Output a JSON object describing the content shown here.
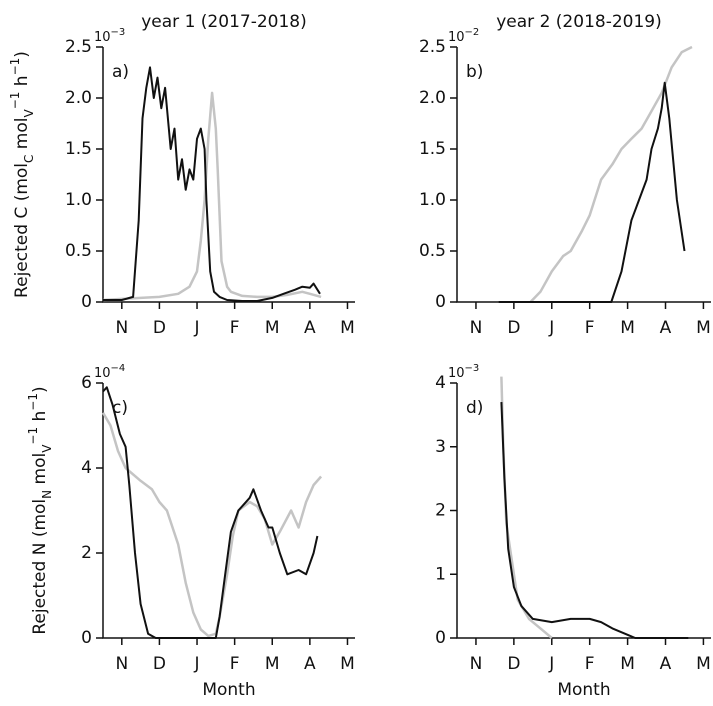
{
  "chart_data": [
    {
      "type": "line",
      "title": "year 1 (2017-2018)",
      "panel_label": "a)",
      "y_scale_label": {
        "base": "10",
        "exponent": "−3"
      },
      "ylabel_parts": [
        {
          "text": "Rejected C (mol",
          "shift": null
        },
        {
          "text": "C",
          "shift": "sub"
        },
        {
          "text": " mol",
          "shift": null
        },
        {
          "text": "V",
          "shift": "sub"
        },
        {
          "text": "−1",
          "shift": "super"
        },
        {
          "text": " h",
          "shift": null
        },
        {
          "text": "−1",
          "shift": "super"
        },
        {
          "text": ")",
          "shift": null
        }
      ],
      "xlim": [
        0.5,
        7.2
      ],
      "ylim": [
        0,
        2.5
      ],
      "xticks": [
        {
          "value": 1,
          "label": "N"
        },
        {
          "value": 2,
          "label": "D"
        },
        {
          "value": 3,
          "label": "J"
        },
        {
          "value": 4,
          "label": "F"
        },
        {
          "value": 5,
          "label": "M"
        },
        {
          "value": 6,
          "label": "A"
        },
        {
          "value": 7,
          "label": "M"
        }
      ],
      "yticks": [
        0,
        0.5,
        {
          "value": 1,
          "label": "1.0"
        },
        1.5,
        {
          "value": 2,
          "label": "2.0"
        },
        2.5
      ],
      "series": [
        {
          "color": "#c4c4c4",
          "x": [
            0.5,
            1.0,
            1.5,
            2.0,
            2.5,
            2.8,
            3.0,
            3.1,
            3.2,
            3.3,
            3.4,
            3.5,
            3.55,
            3.65,
            3.8,
            3.9,
            4.2,
            4.6,
            5.0,
            5.4,
            5.8,
            6.0,
            6.3
          ],
          "values": [
            0.02,
            0.03,
            0.04,
            0.05,
            0.08,
            0.15,
            0.3,
            0.6,
            1.0,
            1.6,
            2.05,
            1.7,
            1.3,
            0.4,
            0.15,
            0.1,
            0.06,
            0.05,
            0.05,
            0.07,
            0.1,
            0.08,
            0.05
          ]
        },
        {
          "color": "#111111",
          "x": [
            0.5,
            1.0,
            1.3,
            1.45,
            1.55,
            1.65,
            1.75,
            1.85,
            1.95,
            2.05,
            2.15,
            2.3,
            2.4,
            2.5,
            2.6,
            2.7,
            2.8,
            2.9,
            3.0,
            3.1,
            3.2,
            3.25,
            3.35,
            3.45,
            3.6,
            3.8,
            4.2,
            4.6,
            5.0,
            5.3,
            5.6,
            5.8,
            6.0,
            6.1,
            6.27
          ],
          "values": [
            0.02,
            0.02,
            0.05,
            0.8,
            1.8,
            2.1,
            2.3,
            2.0,
            2.2,
            1.9,
            2.1,
            1.5,
            1.7,
            1.2,
            1.4,
            1.1,
            1.3,
            1.2,
            1.6,
            1.7,
            1.5,
            1.0,
            0.3,
            0.1,
            0.05,
            0.02,
            0.01,
            0.01,
            0.04,
            0.08,
            0.12,
            0.15,
            0.14,
            0.18,
            0.08
          ]
        }
      ]
    },
    {
      "type": "line",
      "title": "year 2 (2018-2019)",
      "panel_label": "b)",
      "y_scale_label": {
        "base": "10",
        "exponent": "−2"
      },
      "xlim": [
        0.5,
        7.2
      ],
      "ylim": [
        0,
        2.5
      ],
      "xticks": [
        {
          "value": 1,
          "label": "N"
        },
        {
          "value": 2,
          "label": "D"
        },
        {
          "value": 3,
          "label": "J"
        },
        {
          "value": 4,
          "label": "F"
        },
        {
          "value": 5,
          "label": "M"
        },
        {
          "value": 6,
          "label": "A"
        },
        {
          "value": 7,
          "label": "M"
        }
      ],
      "yticks": [
        0,
        0.5,
        {
          "value": 1,
          "label": "1.0"
        },
        1.5,
        {
          "value": 2,
          "label": "2.0"
        },
        2.5
      ],
      "series": [
        {
          "color": "#c4c4c4",
          "x": [
            2.44,
            2.7,
            3.0,
            3.3,
            3.5,
            3.8,
            4.0,
            4.3,
            4.6,
            4.84,
            5.1,
            5.37,
            5.6,
            5.9,
            6.16,
            6.43,
            6.7
          ],
          "values": [
            0,
            0.1,
            0.3,
            0.45,
            0.5,
            0.7,
            0.85,
            1.2,
            1.35,
            1.5,
            1.6,
            1.7,
            1.85,
            2.05,
            2.3,
            2.45,
            2.5
          ]
        },
        {
          "color": "#111111",
          "x": [
            1.6,
            3.0,
            4.57,
            4.84,
            5.1,
            5.3,
            5.5,
            5.63,
            5.8,
            5.9,
            5.98,
            6.1,
            6.3,
            6.5
          ],
          "values": [
            0,
            0,
            0,
            0.3,
            0.8,
            1.0,
            1.2,
            1.5,
            1.7,
            1.9,
            2.15,
            1.8,
            1.0,
            0.5
          ]
        }
      ]
    },
    {
      "type": "line",
      "panel_label": "c)",
      "xlabel": "Month",
      "y_scale_label": {
        "base": "10",
        "exponent": "−4"
      },
      "ylabel_parts": [
        {
          "text": "Rejected N (mol",
          "shift": null
        },
        {
          "text": "N",
          "shift": "sub"
        },
        {
          "text": " mol",
          "shift": null
        },
        {
          "text": "V",
          "shift": "sub"
        },
        {
          "text": "−1",
          "shift": "super"
        },
        {
          "text": " h",
          "shift": null
        },
        {
          "text": "−1",
          "shift": "super"
        },
        {
          "text": ")",
          "shift": null
        }
      ],
      "xlim": [
        0.5,
        7.2
      ],
      "ylim": [
        0,
        6
      ],
      "xticks": [
        {
          "value": 1,
          "label": "N"
        },
        {
          "value": 2,
          "label": "D"
        },
        {
          "value": 3,
          "label": "J"
        },
        {
          "value": 4,
          "label": "F"
        },
        {
          "value": 5,
          "label": "M"
        },
        {
          "value": 6,
          "label": "A"
        },
        {
          "value": 7,
          "label": "M"
        }
      ],
      "yticks": [
        0,
        2,
        4,
        6
      ],
      "series": [
        {
          "color": "#c4c4c4",
          "x": [
            0.5,
            0.7,
            0.9,
            1.1,
            1.5,
            1.8,
            2.0,
            2.2,
            2.5,
            2.7,
            2.9,
            3.1,
            3.3,
            3.5,
            3.6,
            3.8,
            3.95,
            4.1,
            4.4,
            4.6,
            4.8,
            5.0,
            5.2,
            5.5,
            5.7,
            5.9,
            6.1,
            6.3
          ],
          "values": [
            5.3,
            5.0,
            4.4,
            4.0,
            3.7,
            3.5,
            3.2,
            3.0,
            2.2,
            1.3,
            0.6,
            0.2,
            0.05,
            0.1,
            0.5,
            1.5,
            2.4,
            3.0,
            3.2,
            3.1,
            2.8,
            2.2,
            2.5,
            3.0,
            2.6,
            3.2,
            3.6,
            3.8
          ]
        },
        {
          "color": "#111111",
          "x": [
            0.5,
            0.6,
            0.75,
            0.95,
            1.1,
            1.2,
            1.35,
            1.5,
            1.7,
            1.9,
            2.5,
            3.0,
            3.5,
            3.6,
            3.75,
            3.9,
            4.1,
            4.4,
            4.5,
            4.7,
            4.9,
            5.0,
            5.2,
            5.4,
            5.7,
            5.9,
            6.1,
            6.2
          ],
          "values": [
            5.8,
            5.9,
            5.5,
            4.8,
            4.5,
            3.6,
            2.0,
            0.8,
            0.1,
            0,
            0,
            0,
            0,
            0.5,
            1.5,
            2.5,
            3.0,
            3.3,
            3.5,
            3.0,
            2.6,
            2.6,
            2.0,
            1.5,
            1.6,
            1.5,
            2.0,
            2.4
          ]
        }
      ]
    },
    {
      "type": "line",
      "panel_label": "d)",
      "xlabel": "Month",
      "y_scale_label": {
        "base": "10",
        "exponent": "−3"
      },
      "xlim": [
        0.5,
        7.2
      ],
      "ylim": [
        0,
        4
      ],
      "xticks": [
        {
          "value": 1,
          "label": "N"
        },
        {
          "value": 2,
          "label": "D"
        },
        {
          "value": 3,
          "label": "J"
        },
        {
          "value": 4,
          "label": "F"
        },
        {
          "value": 5,
          "label": "M"
        },
        {
          "value": 6,
          "label": "A"
        },
        {
          "value": 7,
          "label": "M"
        }
      ],
      "yticks": [
        0,
        1,
        2,
        3,
        4
      ],
      "series": [
        {
          "color": "#c4c4c4",
          "x": [
            1.67,
            1.72,
            1.8,
            1.95,
            2.1,
            2.4,
            2.8,
            3.0
          ],
          "values": [
            4.1,
            3.0,
            1.8,
            1.2,
            0.6,
            0.3,
            0.1,
            0
          ]
        },
        {
          "color": "#111111",
          "x": [
            1.67,
            1.75,
            1.85,
            2.0,
            2.2,
            2.5,
            3.0,
            3.5,
            4.0,
            4.3,
            4.6,
            5.0,
            5.2,
            6.6
          ],
          "values": [
            3.7,
            2.5,
            1.4,
            0.8,
            0.5,
            0.3,
            0.25,
            0.3,
            0.3,
            0.25,
            0.15,
            0.05,
            0,
            0
          ]
        }
      ]
    }
  ]
}
